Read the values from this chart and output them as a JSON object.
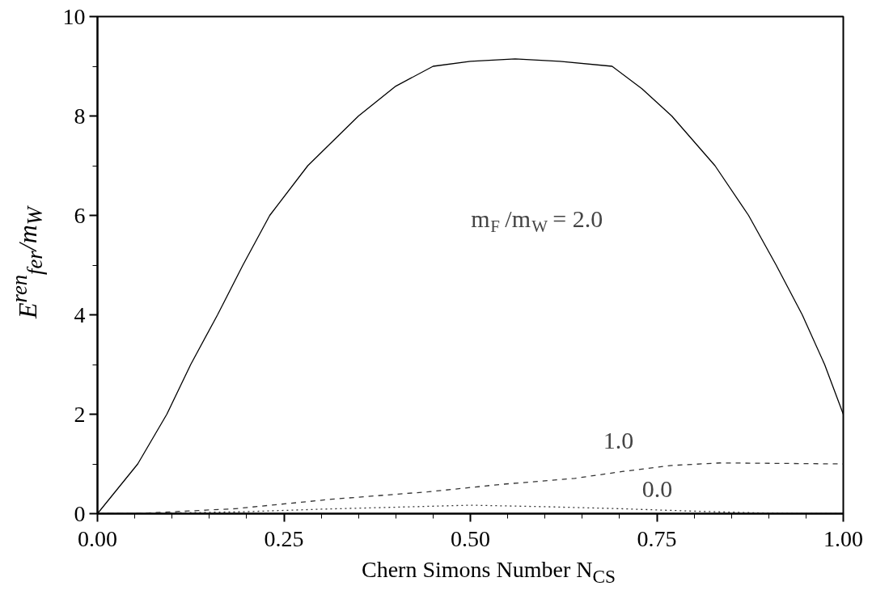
{
  "chart_data": {
    "type": "line",
    "xlabel": "Chern Simons Number N$_{CS}$",
    "ylabel": "E$^{ren}$$_{fer}$/m$_{W}$",
    "xlim": [
      0,
      1
    ],
    "ylim": [
      0,
      10
    ],
    "xticks": [
      {
        "value": 0,
        "label": "0.00"
      },
      {
        "value": 0.05,
        "label": null
      },
      {
        "value": 0.1,
        "label": null
      },
      {
        "value": 0.15,
        "label": null
      },
      {
        "value": 0.2,
        "label": null
      },
      {
        "value": 0.25,
        "label": "0.25"
      },
      {
        "value": 0.3,
        "label": null
      },
      {
        "value": 0.35,
        "label": null
      },
      {
        "value": 0.4,
        "label": null
      },
      {
        "value": 0.45,
        "label": null
      },
      {
        "value": 0.5,
        "label": "0.50"
      },
      {
        "value": 0.55,
        "label": null
      },
      {
        "value": 0.6,
        "label": null
      },
      {
        "value": 0.65,
        "label": null
      },
      {
        "value": 0.7,
        "label": null
      },
      {
        "value": 0.75,
        "label": "0.75"
      },
      {
        "value": 0.8,
        "label": null
      },
      {
        "value": 0.85,
        "label": null
      },
      {
        "value": 0.9,
        "label": null
      },
      {
        "value": 0.95,
        "label": null
      },
      {
        "value": 1,
        "label": "1.00"
      }
    ],
    "yticks": [
      0,
      {
        "value": 1,
        "label": null
      },
      2,
      {
        "value": 3,
        "label": null
      },
      4,
      {
        "value": 5,
        "label": null
      },
      6,
      {
        "value": 7,
        "label": null
      },
      8,
      {
        "value": 9,
        "label": null
      },
      10
    ],
    "grid": false,
    "marker": "none",
    "series": [
      {
        "color": "#000000",
        "line_style": "solid",
        "x": [
          0,
          0.054,
          0.093,
          0.125,
          0.161,
          0.195,
          0.231,
          0.282,
          0.35,
          0.4,
          0.45,
          0.5,
          0.56,
          0.62,
          0.69,
          0.73,
          0.77,
          0.828,
          0.873,
          0.91,
          0.945,
          0.975,
          1
        ],
        "values": [
          0,
          1,
          2,
          3,
          4,
          5,
          6,
          7,
          8,
          8.6,
          9,
          9.1,
          9.15,
          9.1,
          9,
          8.55,
          8,
          7,
          6,
          5,
          4,
          3,
          2
        ]
      },
      {
        "color": "#333333",
        "line_style": "dashed",
        "x": [
          0,
          0.05,
          0.185,
          0.314,
          0.444,
          0.542,
          0.64,
          0.705,
          0.77,
          0.835,
          1
        ],
        "values": [
          0,
          0,
          0.1,
          0.29,
          0.44,
          0.59,
          0.71,
          0.85,
          0.97,
          1.02,
          1.0
        ]
      },
      {
        "color": "#333333",
        "line_style": "dotted",
        "x": [
          0,
          0.05,
          0.2,
          0.3,
          0.4,
          0.5,
          0.6,
          0.7,
          0.8,
          0.9,
          0.95,
          1
        ],
        "values": [
          0,
          0,
          0.04,
          0.09,
          0.13,
          0.17,
          0.14,
          0.1,
          0.05,
          0.01,
          0,
          0
        ]
      }
    ],
    "annotations": [
      "m$_{F}$/m$_{W}$ = 2.0",
      "1.0",
      "0.0"
    ]
  }
}
